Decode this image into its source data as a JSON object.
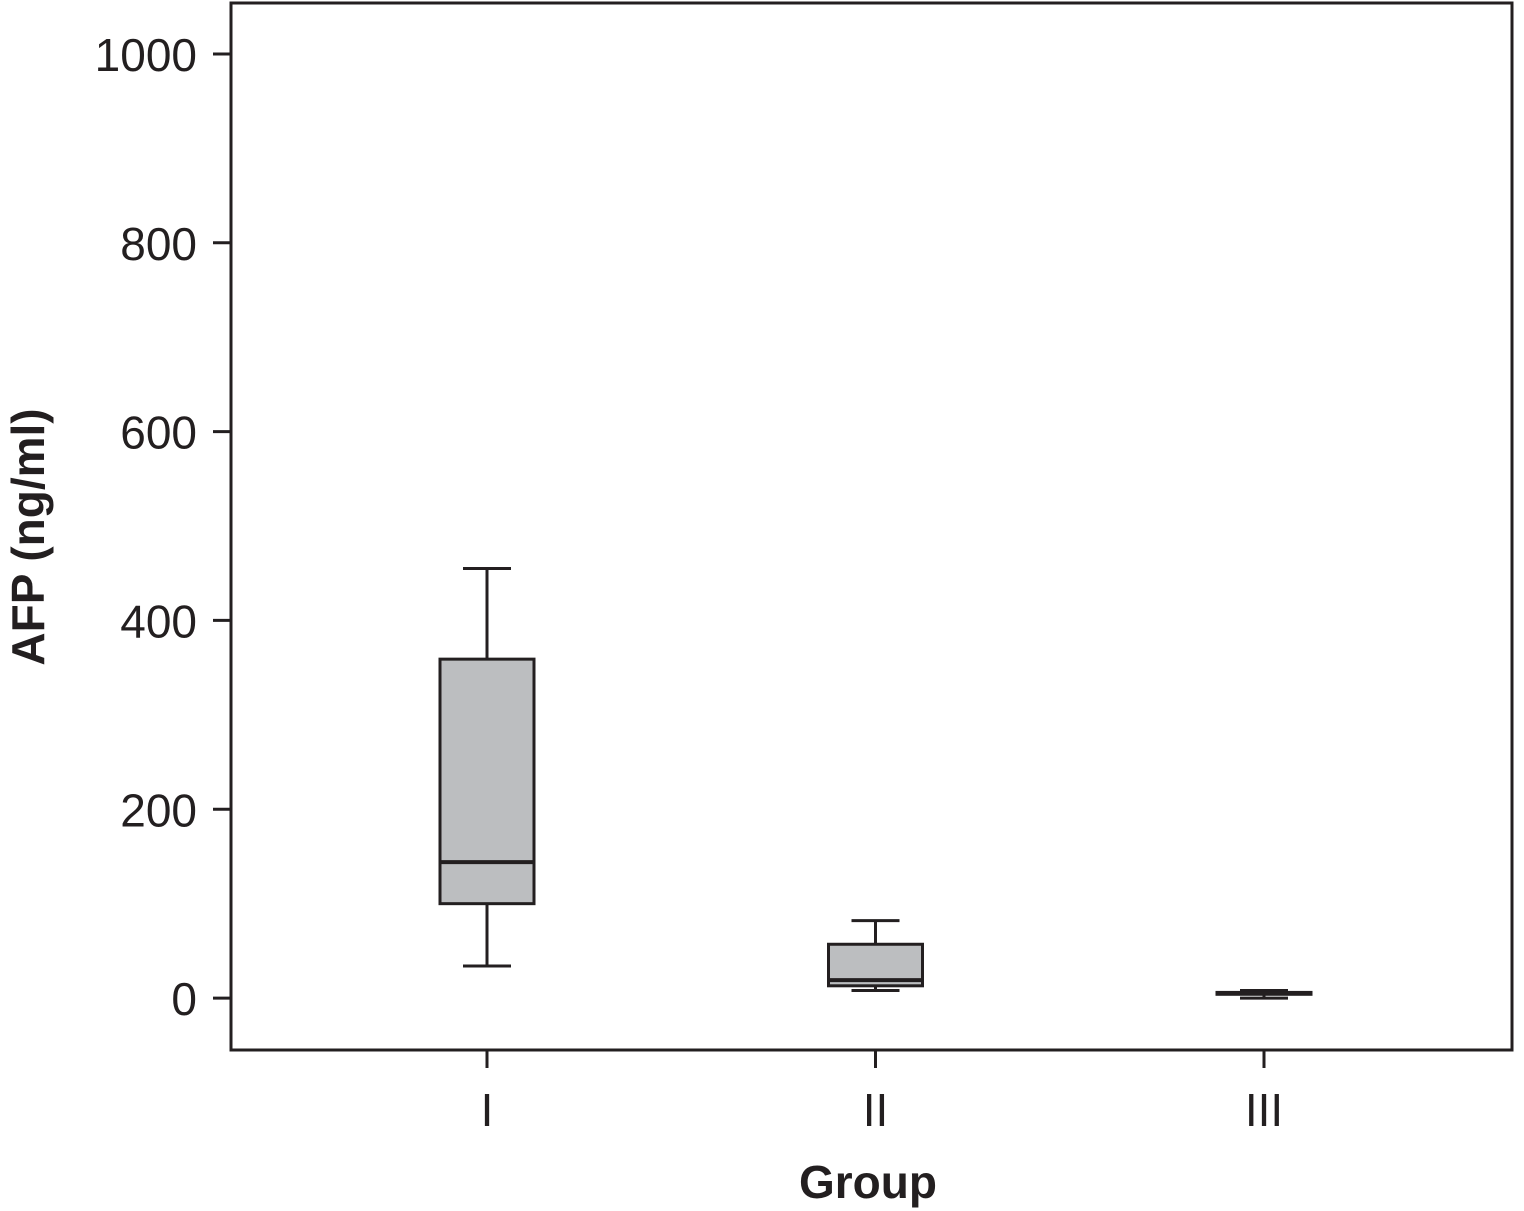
{
  "chart_data": {
    "type": "box",
    "title": "",
    "xlabel": "Group",
    "ylabel": "AFP (ng/ml)",
    "ylim": [
      -55,
      1054
    ],
    "yticks": [
      0,
      200,
      400,
      600,
      800,
      1000
    ],
    "categories": [
      "I",
      "II",
      "III"
    ],
    "boxes": [
      {
        "category": "I",
        "whisker_low": 34,
        "q1": 100,
        "median": 144,
        "q3": 359,
        "whisker_high": 455
      },
      {
        "category": "II",
        "whisker_low": 8,
        "q1": 13,
        "median": 19,
        "q3": 57,
        "whisker_high": 82
      },
      {
        "category": "III",
        "whisker_low": 0,
        "q1": 4,
        "median": 5,
        "q3": 6,
        "whisker_high": 8
      }
    ],
    "grid": false,
    "colors": {
      "box_fill": "#bcbec0",
      "line": "#231f20"
    }
  }
}
